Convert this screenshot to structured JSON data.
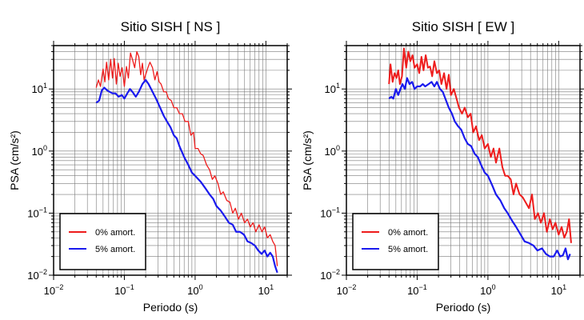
{
  "chart_data": [
    {
      "type": "line",
      "title": "Sitio SISH [ NS ]",
      "xlabel": "Periodo (s)",
      "ylabel": "PSA (cm/s²)",
      "xscale": "log",
      "yscale": "log",
      "xlim": [
        0.01,
        20
      ],
      "ylim": [
        0.01,
        50
      ],
      "xticks": [
        {
          "value": 0.01,
          "base": "10",
          "exp": "−2"
        },
        {
          "value": 0.1,
          "base": "10",
          "exp": "−1"
        },
        {
          "value": 1,
          "base": "10",
          "exp": "0"
        },
        {
          "value": 10,
          "base": "10",
          "exp": "1"
        }
      ],
      "yticks": [
        {
          "value": 0.01,
          "base": "10",
          "exp": "−2"
        },
        {
          "value": 0.1,
          "base": "10",
          "exp": "−1"
        },
        {
          "value": 1,
          "base": "10",
          "exp": "0"
        },
        {
          "value": 10,
          "base": "10",
          "exp": "1"
        }
      ],
      "grid": true,
      "legend_position": "bottom-left",
      "series": [
        {
          "name": "0% amort.",
          "color": "#ee1c1c",
          "x": [
            0.04,
            0.043,
            0.046,
            0.05,
            0.053,
            0.056,
            0.06,
            0.064,
            0.068,
            0.072,
            0.077,
            0.082,
            0.087,
            0.093,
            0.1,
            0.107,
            0.114,
            0.122,
            0.13,
            0.14,
            0.15,
            0.16,
            0.17,
            0.18,
            0.19,
            0.2,
            0.215,
            0.23,
            0.25,
            0.27,
            0.29,
            0.31,
            0.33,
            0.36,
            0.39,
            0.42,
            0.46,
            0.5,
            0.55,
            0.6,
            0.66,
            0.72,
            0.8,
            0.87,
            0.95,
            1.0,
            1.1,
            1.2,
            1.3,
            1.45,
            1.6,
            1.75,
            1.9,
            2.1,
            2.3,
            2.5,
            2.8,
            3.1,
            3.4,
            3.7,
            4.1,
            4.5,
            5.0,
            5.5,
            6.0,
            6.6,
            7.2,
            8.0,
            8.8,
            9.6,
            10.5,
            11.5,
            12.5,
            13.5,
            14.5
          ],
          "y": [
            10.5,
            14,
            11,
            21,
            13,
            27,
            14,
            30,
            15,
            31,
            12,
            26,
            16,
            22,
            11,
            23,
            15,
            38,
            30,
            22,
            40,
            33,
            17,
            26,
            14,
            17,
            22,
            27,
            22,
            14,
            19,
            13,
            12,
            9,
            9,
            7,
            6.5,
            5,
            5,
            4,
            4,
            3,
            3,
            1.8,
            2,
            1.1,
            1.1,
            0.9,
            0.85,
            0.6,
            0.5,
            0.35,
            0.4,
            0.3,
            0.2,
            0.22,
            0.16,
            0.15,
            0.1,
            0.12,
            0.08,
            0.1,
            0.07,
            0.08,
            0.06,
            0.07,
            0.05,
            0.065,
            0.05,
            0.06,
            0.04,
            0.045,
            0.035,
            0.03,
            0.014
          ]
        },
        {
          "name": "5% amort.",
          "color": "#1a1aee",
          "x": [
            0.04,
            0.044,
            0.048,
            0.052,
            0.057,
            0.062,
            0.068,
            0.075,
            0.083,
            0.092,
            0.1,
            0.11,
            0.12,
            0.13,
            0.145,
            0.16,
            0.18,
            0.2,
            0.22,
            0.25,
            0.28,
            0.32,
            0.36,
            0.4,
            0.45,
            0.5,
            0.55,
            0.6,
            0.7,
            0.8,
            0.9,
            1.0,
            1.2,
            1.4,
            1.6,
            1.8,
            2.0,
            2.3,
            2.6,
            3.0,
            3.4,
            3.8,
            4.3,
            4.9,
            5.5,
            6.2,
            7.0,
            7.8,
            8.7,
            9.6,
            10.5,
            11.5,
            12.5,
            13.5,
            14.5
          ],
          "y": [
            6,
            6.5,
            9.5,
            10.5,
            9.5,
            9,
            8.5,
            8.5,
            7.5,
            8,
            7,
            8.5,
            10,
            9,
            7.5,
            9,
            12,
            14,
            12,
            9,
            7,
            5,
            3.7,
            3,
            2.4,
            1.8,
            1.6,
            1.2,
            0.8,
            0.6,
            0.45,
            0.4,
            0.32,
            0.25,
            0.2,
            0.17,
            0.13,
            0.11,
            0.09,
            0.07,
            0.065,
            0.05,
            0.05,
            0.045,
            0.035,
            0.033,
            0.03,
            0.025,
            0.022,
            0.025,
            0.02,
            0.023,
            0.02,
            0.014,
            0.011
          ]
        }
      ]
    },
    {
      "type": "line",
      "title": "Sitio SISH [ EW ]",
      "xlabel": "Periodo (s)",
      "ylabel": "PSA (cm/s²)",
      "xscale": "log",
      "yscale": "log",
      "xlim": [
        0.01,
        20
      ],
      "ylim": [
        0.01,
        50
      ],
      "xticks": [
        {
          "value": 0.01,
          "base": "10",
          "exp": "−2"
        },
        {
          "value": 0.1,
          "base": "10",
          "exp": "−1"
        },
        {
          "value": 1,
          "base": "10",
          "exp": "0"
        },
        {
          "value": 10,
          "base": "10",
          "exp": "1"
        }
      ],
      "yticks": [
        {
          "value": 0.01,
          "base": "10",
          "exp": "−2"
        },
        {
          "value": 0.1,
          "base": "10",
          "exp": "−1"
        },
        {
          "value": 1,
          "base": "10",
          "exp": "0"
        },
        {
          "value": 10,
          "base": "10",
          "exp": "1"
        }
      ],
      "grid": true,
      "legend_position": "bottom-left",
      "series": [
        {
          "name": "0% amort.",
          "color": "#ee1c1c",
          "x": [
            0.04,
            0.042,
            0.045,
            0.048,
            0.051,
            0.054,
            0.057,
            0.061,
            0.065,
            0.07,
            0.075,
            0.08,
            0.086,
            0.092,
            0.1,
            0.107,
            0.115,
            0.123,
            0.132,
            0.142,
            0.152,
            0.163,
            0.175,
            0.19,
            0.205,
            0.22,
            0.24,
            0.26,
            0.28,
            0.3,
            0.33,
            0.36,
            0.39,
            0.43,
            0.47,
            0.52,
            0.57,
            0.62,
            0.68,
            0.75,
            0.82,
            0.9,
            1.0,
            1.1,
            1.2,
            1.3,
            1.45,
            1.6,
            1.75,
            1.9,
            2.1,
            2.3,
            2.5,
            2.8,
            3.1,
            3.4,
            3.8,
            4.2,
            4.6,
            5.1,
            5.6,
            6.2,
            6.8,
            7.5,
            8.2,
            9.0,
            10,
            11,
            12,
            13,
            14,
            15
          ],
          "y": [
            12,
            25,
            13,
            18,
            15,
            20,
            12,
            16,
            45,
            22,
            40,
            28,
            35,
            22,
            25,
            18,
            33,
            20,
            35,
            22,
            23,
            16,
            28,
            18,
            20,
            12,
            18,
            10,
            17,
            8,
            10,
            7,
            5,
            4,
            5,
            3.5,
            4,
            2,
            2.5,
            1.5,
            1.8,
            1.1,
            1.3,
            0.8,
            1.1,
            0.65,
            1.1,
            0.55,
            0.4,
            0.4,
            0.35,
            0.2,
            0.3,
            0.2,
            0.18,
            0.15,
            0.12,
            0.2,
            0.08,
            0.1,
            0.07,
            0.1,
            0.05,
            0.08,
            0.055,
            0.07,
            0.045,
            0.06,
            0.04,
            0.05,
            0.08,
            0.033
          ]
        },
        {
          "name": "5% amort.",
          "color": "#1a1aee",
          "x": [
            0.04,
            0.043,
            0.046,
            0.05,
            0.054,
            0.058,
            0.062,
            0.067,
            0.072,
            0.078,
            0.085,
            0.092,
            0.1,
            0.11,
            0.12,
            0.13,
            0.145,
            0.16,
            0.175,
            0.19,
            0.21,
            0.23,
            0.25,
            0.28,
            0.31,
            0.34,
            0.38,
            0.42,
            0.47,
            0.52,
            0.58,
            0.65,
            0.72,
            0.8,
            0.9,
            1.0,
            1.15,
            1.3,
            1.5,
            1.7,
            1.9,
            2.2,
            2.5,
            2.9,
            3.3,
            3.8,
            4.4,
            5.0,
            5.8,
            6.6,
            7.5,
            8.5,
            9.5,
            10.5,
            11.5,
            12.5,
            13.5,
            14.5
          ],
          "y": [
            7,
            7.5,
            7,
            10,
            8,
            10,
            12,
            10,
            15,
            12,
            13,
            10,
            11,
            11,
            12,
            11,
            12,
            13,
            11,
            13,
            10,
            9,
            7,
            5,
            4,
            3,
            2.5,
            2.2,
            1.6,
            1.3,
            1.2,
            0.9,
            0.8,
            0.6,
            0.45,
            0.4,
            0.28,
            0.2,
            0.16,
            0.12,
            0.1,
            0.075,
            0.06,
            0.045,
            0.035,
            0.033,
            0.03,
            0.025,
            0.027,
            0.022,
            0.02,
            0.02,
            0.025,
            0.02,
            0.021,
            0.027,
            0.018,
            0.022
          ]
        }
      ]
    }
  ]
}
